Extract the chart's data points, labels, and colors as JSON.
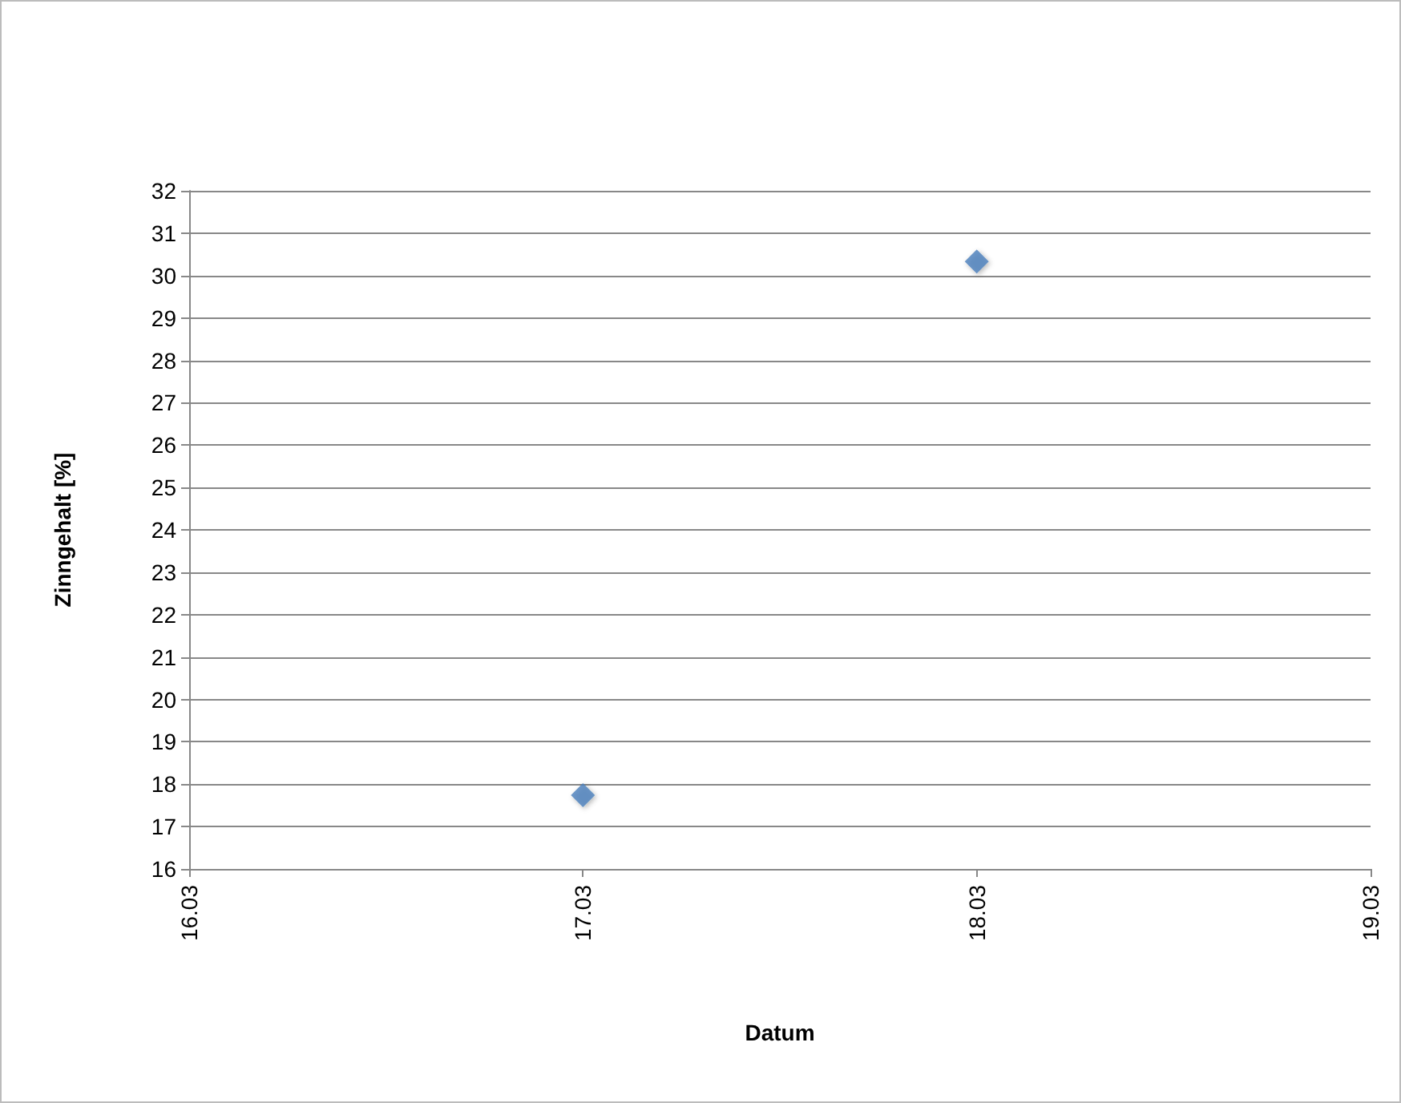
{
  "chart_data": {
    "type": "scatter",
    "xlabel": "Datum",
    "ylabel": "Zinngehalt [%]",
    "x": [
      "--03-17",
      "--03-18"
    ],
    "series": [
      {
        "color": "#4a7ebb",
        "values": [
          17.74,
          30.33
        ]
      }
    ],
    "xlim": [
      "--03-16",
      "--03-19"
    ],
    "xticks": [
      {
        "value": "--03-16",
        "label": "16.03"
      },
      {
        "value": "--03-17",
        "label": "17.03"
      },
      {
        "value": "--03-18",
        "label": "18.03"
      },
      {
        "value": "--03-19",
        "label": "19.03"
      }
    ],
    "ylim": [
      16,
      32
    ],
    "yticks": [
      16,
      17,
      18,
      19,
      20,
      21,
      22,
      23,
      24,
      25,
      26,
      27,
      28,
      29,
      30,
      31,
      32
    ],
    "grid": "y",
    "marker": "diamond"
  }
}
